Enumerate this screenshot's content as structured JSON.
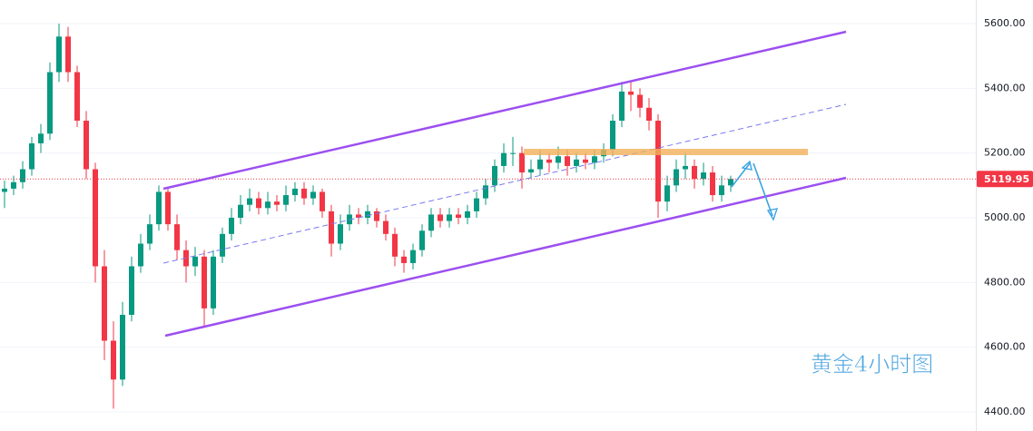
{
  "chart_data": {
    "type": "candlestick",
    "annotation": "黄金4小时图",
    "ylim": [
      4341,
      5673
    ],
    "yticks": [
      {
        "value": 4400,
        "label": "4400.00"
      },
      {
        "value": 4600,
        "label": "4600.00"
      },
      {
        "value": 4800,
        "label": "4800.00"
      },
      {
        "value": 5000,
        "label": "5000.00"
      },
      {
        "value": 5200,
        "label": "5200.00"
      },
      {
        "value": 5400,
        "label": "5400.00"
      },
      {
        "value": 5600,
        "label": "5600.00"
      }
    ],
    "grid": true,
    "up_color": "#089981",
    "down_color": "#f23645",
    "last_price": 5119.95,
    "open": [
      5080,
      5090,
      5110,
      5150,
      5230,
      5260,
      5450,
      5560,
      5450,
      5300,
      5150,
      4850,
      4620,
      4500,
      4700,
      4850,
      4920,
      4980,
      5080,
      4980,
      4900,
      4850,
      4880,
      4720,
      4880,
      4950,
      5000,
      5040,
      5060,
      5030,
      5050,
      5040,
      5070,
      5090,
      5060,
      5080,
      5020,
      4920,
      4980,
      5010,
      5000,
      5020,
      4990,
      4950,
      4880,
      4860,
      4900,
      4960,
      5010,
      4990,
      5010,
      5000,
      5020,
      5060,
      5100,
      5160,
      5200,
      5200,
      5140,
      5150,
      5180,
      5170,
      5190,
      5160,
      5180,
      5170,
      5190,
      5210,
      5300,
      5390,
      5380,
      5340,
      5300,
      5050,
      5100,
      5150,
      5160,
      5120,
      5140,
      5070,
      5100
    ],
    "high": [
      5115,
      5130,
      5175,
      5250,
      5290,
      5480,
      5600,
      5590,
      5470,
      5330,
      5170,
      4900,
      4680,
      4740,
      4880,
      4950,
      5010,
      5100,
      5090,
      5010,
      4930,
      4910,
      4900,
      4900,
      4970,
      5030,
      5070,
      5090,
      5080,
      5080,
      5070,
      5100,
      5110,
      5110,
      5100,
      5090,
      5040,
      5010,
      5040,
      5030,
      5040,
      5030,
      5010,
      4970,
      4900,
      4920,
      4980,
      5030,
      5030,
      5030,
      5030,
      5040,
      5080,
      5120,
      5180,
      5230,
      5250,
      5220,
      5180,
      5210,
      5200,
      5220,
      5210,
      5200,
      5200,
      5210,
      5230,
      5320,
      5420,
      5420,
      5400,
      5370,
      5320,
      5130,
      5180,
      5200,
      5180,
      5170,
      5160,
      5130,
      5130
    ],
    "low": [
      5030,
      5070,
      5090,
      5130,
      5200,
      5240,
      5420,
      5420,
      5280,
      5120,
      4800,
      4560,
      4410,
      4480,
      4680,
      4830,
      4900,
      4960,
      4960,
      4870,
      4800,
      4820,
      4660,
      4700,
      4860,
      4930,
      4980,
      5020,
      5010,
      5010,
      5020,
      5020,
      5050,
      5040,
      5040,
      5000,
      4880,
      4900,
      4960,
      4980,
      4980,
      4970,
      4930,
      4850,
      4830,
      4840,
      4880,
      4940,
      4970,
      4970,
      4980,
      4980,
      5000,
      5040,
      5080,
      5140,
      5160,
      5090,
      5120,
      5130,
      5140,
      5150,
      5130,
      5140,
      5150,
      5150,
      5170,
      5190,
      5280,
      5330,
      5310,
      5270,
      5000,
      5020,
      5080,
      5120,
      5090,
      5100,
      5050,
      5050,
      5080
    ],
    "close": [
      5090,
      5110,
      5150,
      5230,
      5260,
      5450,
      5560,
      5450,
      5300,
      5150,
      4850,
      4620,
      4500,
      4700,
      4850,
      4920,
      4980,
      5080,
      4980,
      4900,
      4850,
      4880,
      4720,
      4880,
      4950,
      5000,
      5040,
      5060,
      5030,
      5050,
      5040,
      5070,
      5090,
      5060,
      5080,
      5020,
      4920,
      4980,
      5010,
      5000,
      5020,
      4990,
      4950,
      4880,
      4860,
      4900,
      4960,
      5010,
      4990,
      5010,
      5000,
      5020,
      5060,
      5100,
      5160,
      5200,
      5200,
      5140,
      5150,
      5180,
      5170,
      5190,
      5160,
      5180,
      5170,
      5190,
      5210,
      5300,
      5390,
      5380,
      5340,
      5300,
      5050,
      5100,
      5150,
      5160,
      5120,
      5140,
      5070,
      5100,
      5120
    ]
  }
}
